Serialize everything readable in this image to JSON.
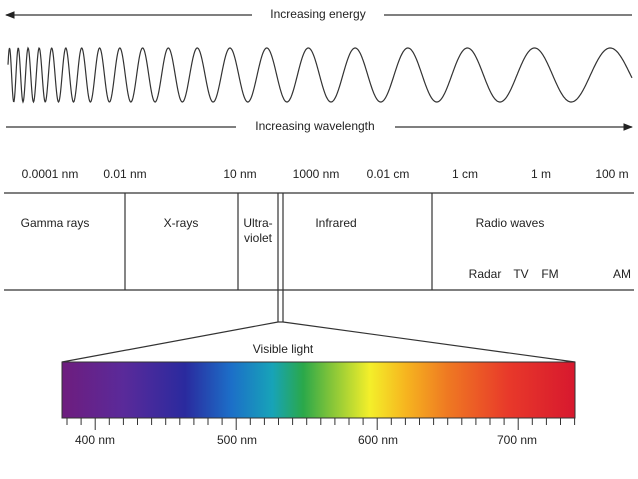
{
  "energy_arrow": {
    "label": "Increasing energy"
  },
  "wavelength_arrow": {
    "label": "Increasing wavelength"
  },
  "scale": {
    "ticks": [
      "0.0001 nm",
      "0.01 nm",
      "10 nm",
      "1000 nm",
      "0.01 cm",
      "1 cm",
      "1 m",
      "100 m"
    ]
  },
  "regions": [
    {
      "label": "Gamma rays"
    },
    {
      "label": "X-rays"
    },
    {
      "label": [
        "Ultra-",
        "violet"
      ]
    },
    {
      "label": "Infrared"
    },
    {
      "label": "Radio waves"
    }
  ],
  "radio_bands": [
    "Radar",
    "TV",
    "FM",
    "AM"
  ],
  "visible": {
    "title": "Visible light",
    "ticks": [
      "400 nm",
      "500 nm",
      "600 nm",
      "700 nm"
    ]
  }
}
